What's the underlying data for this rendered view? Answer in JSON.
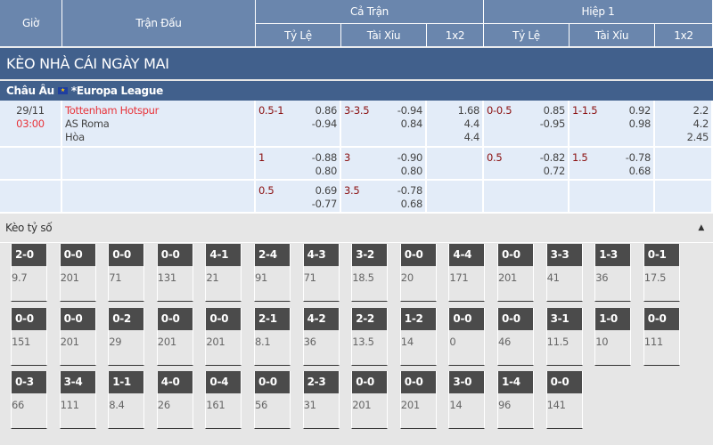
{
  "header": {
    "gio": "Giờ",
    "tran_dau": "Trận Đấu",
    "ca_tran": "Cả Trận",
    "hiep1": "Hiệp 1",
    "ty_le": "Tỷ Lệ",
    "tai_xiu": "Tài Xỉu",
    "x12": "1x2"
  },
  "section_title": "KÈO NHÀ CÁI NGÀY MAI",
  "league": {
    "region": "Châu Âu",
    "flag_icon": "eu-flag-icon",
    "name": "*Europa League"
  },
  "match": {
    "date": "29/11",
    "time": "03:00",
    "home": "Tottenham Hotspur",
    "away": "AS Roma",
    "draw": "Hòa"
  },
  "rows": [
    {
      "ft_hdp": "0.5-1",
      "ft_hdp_o": [
        "0.86",
        "-0.94"
      ],
      "ft_ou": "3-3.5",
      "ft_ou_o": [
        "-0.94",
        "0.84"
      ],
      "ft_1x2": [
        "1.68",
        "4.4",
        "4.4"
      ],
      "h1_hdp": "0-0.5",
      "h1_hdp_o": [
        "0.85",
        "-0.95"
      ],
      "h1_ou": "1-1.5",
      "h1_ou_o": [
        "0.92",
        "0.98"
      ],
      "h1_1x2": [
        "2.2",
        "4.2",
        "2.45"
      ]
    },
    {
      "ft_hdp": "1",
      "ft_hdp_o": [
        "-0.88",
        "0.80"
      ],
      "ft_ou": "3",
      "ft_ou_o": [
        "-0.90",
        "0.80"
      ],
      "ft_1x2": [],
      "h1_hdp": "0.5",
      "h1_hdp_o": [
        "-0.82",
        "0.72"
      ],
      "h1_ou": "1.5",
      "h1_ou_o": [
        "-0.78",
        "0.68"
      ],
      "h1_1x2": []
    },
    {
      "ft_hdp": "0.5",
      "ft_hdp_o": [
        "0.69",
        "-0.77"
      ],
      "ft_ou": "3.5",
      "ft_ou_o": [
        "-0.78",
        "0.68"
      ],
      "ft_1x2": [],
      "h1_hdp": "",
      "h1_hdp_o": [],
      "h1_ou": "",
      "h1_ou_o": [],
      "h1_1x2": []
    }
  ],
  "score_section": {
    "title": "Kèo tỷ số",
    "collapse_icon": "caret-up-icon"
  },
  "scores": [
    [
      [
        "2-0",
        "9.7"
      ],
      [
        "0-0",
        "201"
      ],
      [
        "0-0",
        "71"
      ],
      [
        "0-0",
        "131"
      ],
      [
        "4-1",
        "21"
      ],
      [
        "2-4",
        "91"
      ],
      [
        "4-3",
        "71"
      ],
      [
        "3-2",
        "18.5"
      ],
      [
        "0-0",
        "20"
      ],
      [
        "4-4",
        "171"
      ],
      [
        "0-0",
        "201"
      ],
      [
        "3-3",
        "41"
      ],
      [
        "1-3",
        "36"
      ],
      [
        "0-1",
        "17.5"
      ]
    ],
    [
      [
        "0-0",
        "151"
      ],
      [
        "0-0",
        "201"
      ],
      [
        "0-2",
        "29"
      ],
      [
        "0-0",
        "201"
      ],
      [
        "0-0",
        "201"
      ],
      [
        "2-1",
        "8.1"
      ],
      [
        "4-2",
        "36"
      ],
      [
        "2-2",
        "13.5"
      ],
      [
        "1-2",
        "14"
      ],
      [
        "0-0",
        "0"
      ],
      [
        "0-0",
        "46"
      ],
      [
        "3-1",
        "11.5"
      ],
      [
        "1-0",
        "10"
      ],
      [
        "0-0",
        "111"
      ]
    ],
    [
      [
        "0-3",
        "66"
      ],
      [
        "3-4",
        "111"
      ],
      [
        "1-1",
        "8.4"
      ],
      [
        "4-0",
        "26"
      ],
      [
        "0-4",
        "161"
      ],
      [
        "0-0",
        "56"
      ],
      [
        "2-3",
        "31"
      ],
      [
        "0-0",
        "201"
      ],
      [
        "0-0",
        "201"
      ],
      [
        "3-0",
        "14"
      ],
      [
        "1-4",
        "96"
      ],
      [
        "0-0",
        "141"
      ]
    ]
  ]
}
